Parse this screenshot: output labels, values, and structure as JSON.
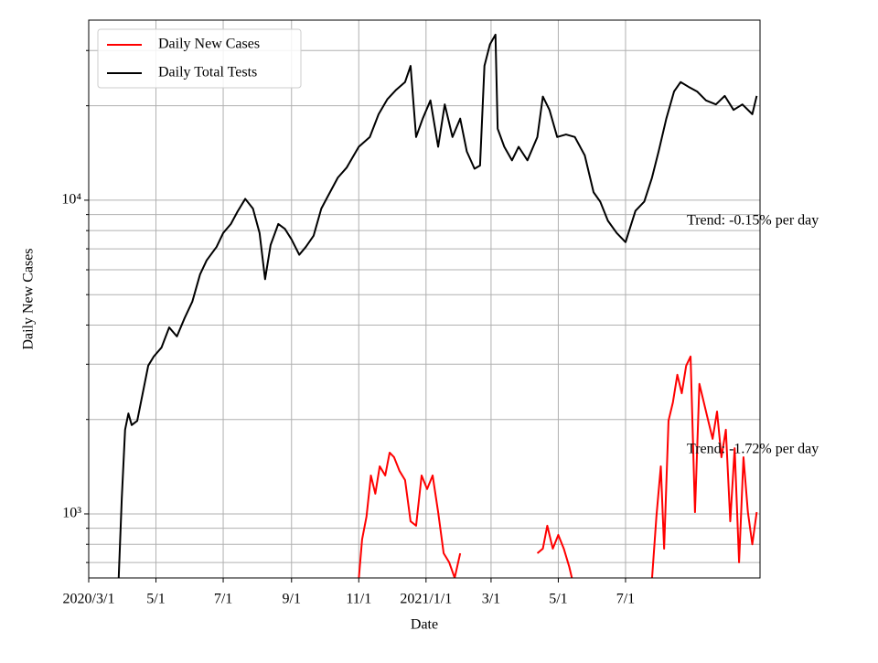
{
  "chart_data": {
    "type": "line",
    "xlabel": "Date",
    "ylabel": "Daily New Cases",
    "log_y": true,
    "grid": true,
    "legend": "upper-left",
    "xlim": [
      "2020-03-01",
      "2021-10-31"
    ],
    "xticks": [
      {
        "value": "2020-03-01",
        "label": "2020/3/1"
      },
      {
        "value": "2020-05-01",
        "label": "5/1"
      },
      {
        "value": "2020-07-01",
        "label": "7/1"
      },
      {
        "value": "2020-09-01",
        "label": "9/1"
      },
      {
        "value": "2020-11-01",
        "label": "11/1"
      },
      {
        "value": "2021-01-01",
        "label": "2021/1/1"
      },
      {
        "value": "2021-03-01",
        "label": "3/1"
      },
      {
        "value": "2021-05-01",
        "label": "5/1"
      },
      {
        "value": "2021-07-01",
        "label": "7/1"
      }
    ],
    "ylim": [
      625,
      37500
    ],
    "yticks": [
      {
        "value": 1000,
        "label": "10³"
      },
      {
        "value": 10000,
        "label": "10⁴"
      }
    ],
    "minor_yticks": [
      700,
      800,
      900,
      2000,
      3000,
      4000,
      5000,
      6000,
      7000,
      8000,
      9000,
      20000,
      30000
    ],
    "annotations": [
      {
        "text": "Trend: -0.15% per day"
      },
      {
        "text": "Trend: -1.72% per day"
      }
    ],
    "series": [
      {
        "name": "Daily New Cases",
        "color": "#ff0000",
        "x": [
          "2020-11-01",
          "2020-11-04",
          "2020-11-08",
          "2020-11-12",
          "2020-11-16",
          "2020-11-20",
          "2020-11-25",
          "2020-11-29",
          "2020-12-03",
          "2020-12-08",
          "2020-12-13",
          "2020-12-18",
          "2020-12-23",
          "2020-12-28",
          "2021-01-02",
          "2021-01-07",
          "2021-01-12",
          "2021-01-17",
          "2021-01-22",
          "2021-01-27",
          "2021-02-01",
          "2021-03-01",
          "2021-04-12",
          "2021-04-17",
          "2021-04-21",
          "2021-04-26",
          "2021-05-01",
          "2021-05-06",
          "2021-05-11",
          "2021-05-15",
          "2021-06-15",
          "2021-07-25",
          "2021-07-29",
          "2021-08-02",
          "2021-08-05",
          "2021-08-09",
          "2021-08-13",
          "2021-08-17",
          "2021-08-21",
          "2021-08-25",
          "2021-08-29",
          "2021-09-02",
          "2021-09-06",
          "2021-09-10",
          "2021-09-14",
          "2021-09-18",
          "2021-09-22",
          "2021-09-26",
          "2021-09-30",
          "2021-10-04",
          "2021-10-08",
          "2021-10-12",
          "2021-10-16",
          "2021-10-20",
          "2021-10-24",
          "2021-10-28"
        ],
        "values": [
          620,
          829,
          980,
          1326,
          1160,
          1418,
          1326,
          1568,
          1516,
          1370,
          1282,
          947,
          917,
          1326,
          1200,
          1326,
          1013,
          749,
          701,
          625,
          749,
          null,
          749,
          775,
          917,
          775,
          857,
          775,
          677,
          590,
          null,
          620,
          980,
          1418,
          775,
          1983,
          2270,
          2777,
          2424,
          2967,
          3175,
          1013,
          2597,
          2270,
          1983,
          1735,
          2120,
          1516,
          1855,
          947,
          1620,
          701,
          1516,
          1013,
          800,
          1013
        ]
      },
      {
        "name": "Daily Total Tests",
        "color": "#000000",
        "x": [
          "2020-03-28",
          "2020-03-31",
          "2020-04-03",
          "2020-04-06",
          "2020-04-09",
          "2020-04-14",
          "2020-04-19",
          "2020-04-24",
          "2020-04-29",
          "2020-05-06",
          "2020-05-13",
          "2020-05-20",
          "2020-05-27",
          "2020-06-03",
          "2020-06-10",
          "2020-06-16",
          "2020-06-25",
          "2020-07-01",
          "2020-07-08",
          "2020-07-14",
          "2020-07-21",
          "2020-07-28",
          "2020-08-03",
          "2020-08-08",
          "2020-08-13",
          "2020-08-20",
          "2020-08-26",
          "2020-09-01",
          "2020-09-08",
          "2020-09-14",
          "2020-09-21",
          "2020-09-28",
          "2020-10-04",
          "2020-10-13",
          "2020-10-21",
          "2020-11-01",
          "2020-11-11",
          "2020-11-19",
          "2020-11-27",
          "2020-12-05",
          "2020-12-13",
          "2020-12-18",
          "2020-12-23",
          "2020-12-29",
          "2021-01-05",
          "2021-01-12",
          "2021-01-18",
          "2021-01-25",
          "2021-02-01",
          "2021-02-07",
          "2021-02-14",
          "2021-02-19",
          "2021-02-23",
          "2021-02-28",
          "2021-03-05",
          "2021-03-07",
          "2021-03-13",
          "2021-03-20",
          "2021-03-26",
          "2021-04-03",
          "2021-04-12",
          "2021-04-17",
          "2021-04-23",
          "2021-04-30",
          "2021-05-08",
          "2021-05-16",
          "2021-05-25",
          "2021-06-02",
          "2021-06-08",
          "2021-06-15",
          "2021-06-23",
          "2021-07-01",
          "2021-07-10",
          "2021-07-18",
          "2021-07-25",
          "2021-07-31",
          "2021-08-07",
          "2021-08-14",
          "2021-08-20",
          "2021-08-27",
          "2021-09-04",
          "2021-09-12",
          "2021-09-21",
          "2021-09-29",
          "2021-10-07",
          "2021-10-15",
          "2021-10-24",
          "2021-10-28"
        ],
        "values": [
          600,
          1121,
          1855,
          2090,
          1920,
          1980,
          2425,
          2970,
          3175,
          3390,
          3930,
          3680,
          4210,
          4750,
          5800,
          6430,
          7100,
          7860,
          8400,
          9200,
          10100,
          9400,
          7860,
          5600,
          7200,
          8400,
          8100,
          7500,
          6700,
          7100,
          7700,
          9400,
          10300,
          11800,
          12700,
          14800,
          15900,
          18800,
          21000,
          22500,
          23800,
          26800,
          15900,
          18200,
          20800,
          14800,
          20200,
          15900,
          18200,
          14300,
          12600,
          12900,
          26800,
          31400,
          33700,
          16900,
          14800,
          13400,
          14800,
          13400,
          15900,
          21400,
          19400,
          15900,
          16200,
          15900,
          13900,
          10600,
          9900,
          8600,
          7860,
          7350,
          9250,
          9900,
          11800,
          14300,
          18200,
          22200,
          23800,
          23000,
          22200,
          20800,
          20200,
          21500,
          19400,
          20200,
          18800,
          21500
        ]
      }
    ]
  }
}
